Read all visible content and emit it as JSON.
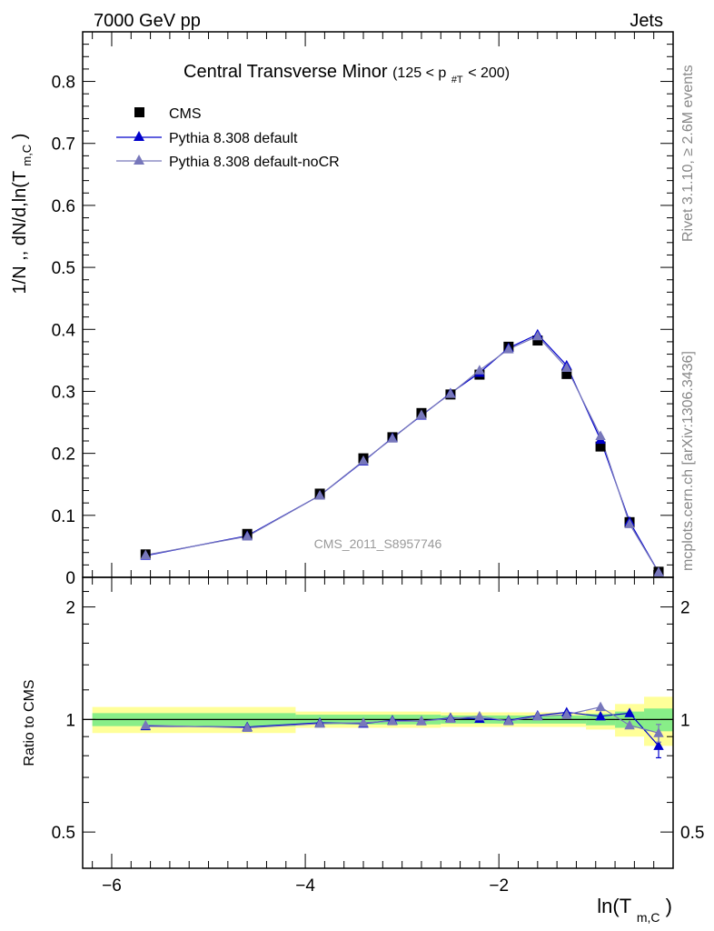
{
  "header": {
    "left": "7000 GeV pp",
    "right": "Jets",
    "side_upper": "Rivet 3.1.10, ≥ 2.6M events",
    "side_lower": "mcplots.cern.ch [arXiv:1306.3436]"
  },
  "colors": {
    "cms": "#000000",
    "pythia_default": "#0000cc",
    "pythia_nocr": "#7777bb",
    "band_inner": "#88ee88",
    "band_outer": "#ffff99",
    "axis": "#000000",
    "watermark": "#999999"
  },
  "chart_data": [
    {
      "type": "line",
      "title": "Central Transverse Minor",
      "title_suffix": {
        "pre": "(125 < p",
        "sub": "#T",
        "post": " < 200)"
      },
      "ylabel": {
        "pre": "1/N ,, dN/d,ln(T",
        "sub": "m,C",
        "post": ")"
      },
      "watermark": "CMS_2011_S8957746",
      "xlim": [
        -6.3,
        -0.2
      ],
      "ylim": [
        0,
        0.88
      ],
      "yticks": [
        0,
        0.1,
        0.2,
        0.3,
        0.4,
        0.5,
        0.6,
        0.7,
        0.8
      ],
      "ytick_labels": [
        "0",
        "0.1",
        "0.2",
        "0.3",
        "0.4",
        "0.5",
        "0.6",
        "0.7",
        "0.8"
      ],
      "legend_position": "top-left",
      "x": [
        -5.65,
        -4.6,
        -3.85,
        -3.4,
        -3.1,
        -2.8,
        -2.5,
        -2.2,
        -1.9,
        -1.6,
        -1.3,
        -0.95,
        -0.65,
        -0.35
      ],
      "series": [
        {
          "name": "CMS",
          "marker": "square",
          "values": [
            0.037,
            0.07,
            0.135,
            0.192,
            0.226,
            0.265,
            0.295,
            0.327,
            0.372,
            0.382,
            0.328,
            0.211,
            0.089,
            0.009
          ]
        },
        {
          "name": "Pythia 8.308 default",
          "marker": "triangle",
          "values": [
            0.035,
            0.067,
            0.132,
            0.187,
            0.225,
            0.261,
            0.297,
            0.33,
            0.37,
            0.392,
            0.342,
            0.222,
            0.09,
            0.008
          ]
        },
        {
          "name": "Pythia 8.308 default-noCR",
          "marker": "triangle",
          "values": [
            0.036,
            0.066,
            0.132,
            0.188,
            0.224,
            0.262,
            0.296,
            0.334,
            0.368,
            0.389,
            0.338,
            0.228,
            0.086,
            0.008
          ]
        }
      ]
    },
    {
      "type": "line",
      "ylabel": "Ratio to CMS",
      "xlabel": {
        "pre": "ln(T",
        "sub": "m,C",
        "post": ")"
      },
      "xlim": [
        -6.3,
        -0.2
      ],
      "ylim": [
        0.4,
        2.4
      ],
      "log_y": true,
      "yticks": [
        0.5,
        1,
        2
      ],
      "ytick_labels": [
        "0.5",
        "1",
        "2"
      ],
      "xticks": [
        -6,
        -4,
        -2
      ],
      "xtick_labels": [
        "−6",
        "−4",
        "−2"
      ],
      "bands": [
        {
          "x0": -6.2,
          "x1": -4.1,
          "inner": [
            0.96,
            1.04
          ],
          "outer": [
            0.92,
            1.08
          ]
        },
        {
          "x0": -4.1,
          "x1": -2.6,
          "inner": [
            0.97,
            1.03
          ],
          "outer": [
            0.95,
            1.05
          ]
        },
        {
          "x0": -2.6,
          "x1": -1.1,
          "inner": [
            0.975,
            1.025
          ],
          "outer": [
            0.955,
            1.045
          ]
        },
        {
          "x0": -1.1,
          "x1": -0.8,
          "inner": [
            0.965,
            1.035
          ],
          "outer": [
            0.94,
            1.06
          ]
        },
        {
          "x0": -0.8,
          "x1": -0.5,
          "inner": [
            0.95,
            1.05
          ],
          "outer": [
            0.9,
            1.1
          ]
        },
        {
          "x0": -0.5,
          "x1": -0.2,
          "inner": [
            0.93,
            1.07
          ],
          "outer": [
            0.85,
            1.15
          ]
        }
      ],
      "series": [
        {
          "name": "Pythia 8.308 default",
          "values": [
            0.96,
            0.955,
            0.98,
            0.975,
            0.995,
            0.99,
            1.01,
            1.005,
            0.995,
            1.025,
            1.045,
            1.02,
            1.04,
            0.85
          ],
          "errors": [
            0,
            0,
            0,
            0,
            0,
            0,
            0,
            0,
            0,
            0,
            0,
            0,
            0,
            0.06
          ]
        },
        {
          "name": "Pythia 8.308 default-noCR",
          "values": [
            0.965,
            0.95,
            0.975,
            0.98,
            0.99,
            0.99,
            1.005,
            1.02,
            0.99,
            1.02,
            1.03,
            1.08,
            0.965,
            0.92
          ],
          "errors": [
            0,
            0,
            0,
            0,
            0,
            0,
            0,
            0,
            0,
            0,
            0,
            0,
            0,
            0.05
          ]
        }
      ]
    }
  ]
}
